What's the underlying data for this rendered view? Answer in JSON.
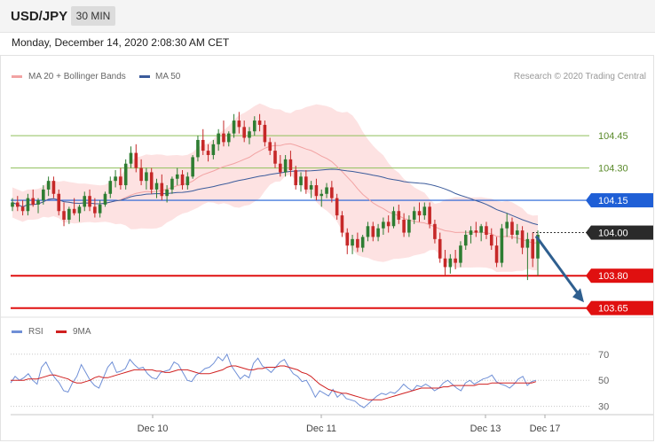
{
  "header": {
    "symbol": "USD/JPY",
    "timeframe": "30 MIN"
  },
  "datetime": "Monday, December 14, 2020 2:08:30 AM CET",
  "credit": "Research © 2020 Trading Central",
  "legend": {
    "ma20_label": "MA 20 + Bollinger Bands",
    "ma50_label": "MA 50",
    "rsi_label": "RSI",
    "rsi_ma_label": "9MA"
  },
  "colors": {
    "bull": "#2e7d32",
    "bear": "#c62828",
    "ma20": "#f2a3a3",
    "ma50": "#3b5b9b",
    "band": "#fde2e2",
    "support": "#e01010",
    "pivot_blue": "#1f5fd6",
    "resistance_green": "#8fbf5a",
    "arrow": "#2f5f8f",
    "rsi_line": "#6f8fd6",
    "rsi_ma": "#d02020"
  },
  "chart_data": [
    {
      "type": "candlestick",
      "x_ticks": [
        "Dec 10",
        "Dec 11",
        "Dec 13",
        "Dec 17"
      ],
      "ylim": [
        103.62,
        104.66
      ],
      "levels": [
        {
          "label": "104.45",
          "value": 104.45,
          "kind": "resistance"
        },
        {
          "label": "104.30",
          "value": 104.3,
          "kind": "resistance"
        },
        {
          "label": "104.15",
          "value": 104.15,
          "kind": "pivot"
        },
        {
          "label": "104.00",
          "value": 104.0,
          "kind": "last"
        },
        {
          "label": "103.80",
          "value": 103.8,
          "kind": "support"
        },
        {
          "label": "103.65",
          "value": 103.65,
          "kind": "support"
        }
      ],
      "projection": {
        "from_value": 104.0,
        "to_value": 103.66
      },
      "candles": [
        [
          104.12,
          104.16,
          104.1,
          104.14
        ],
        [
          104.14,
          104.17,
          104.1,
          104.12
        ],
        [
          104.12,
          104.15,
          104.08,
          104.1
        ],
        [
          104.1,
          104.18,
          104.08,
          104.16
        ],
        [
          104.16,
          104.2,
          104.12,
          104.13
        ],
        [
          104.13,
          104.16,
          104.09,
          104.15
        ],
        [
          104.15,
          104.22,
          104.13,
          104.2
        ],
        [
          104.2,
          104.26,
          104.17,
          104.24
        ],
        [
          104.24,
          104.26,
          104.16,
          104.18
        ],
        [
          104.18,
          104.2,
          104.08,
          104.1
        ],
        [
          104.1,
          104.14,
          104.03,
          104.06
        ],
        [
          104.06,
          104.12,
          104.04,
          104.11
        ],
        [
          104.11,
          104.16,
          104.08,
          104.09
        ],
        [
          104.09,
          104.13,
          104.05,
          104.12
        ],
        [
          104.12,
          104.19,
          104.1,
          104.17
        ],
        [
          104.17,
          104.2,
          104.1,
          104.12
        ],
        [
          104.12,
          104.16,
          104.07,
          104.09
        ],
        [
          104.09,
          104.15,
          104.07,
          104.13
        ],
        [
          104.13,
          104.19,
          104.12,
          104.18
        ],
        [
          104.18,
          104.26,
          104.16,
          104.24
        ],
        [
          104.24,
          104.29,
          104.21,
          104.26
        ],
        [
          104.26,
          104.3,
          104.2,
          104.22
        ],
        [
          104.22,
          104.34,
          104.2,
          104.32
        ],
        [
          104.32,
          104.4,
          104.3,
          104.37
        ],
        [
          104.37,
          104.41,
          104.28,
          104.3
        ],
        [
          104.3,
          104.34,
          104.22,
          104.24
        ],
        [
          104.24,
          104.3,
          104.2,
          104.28
        ],
        [
          104.28,
          104.3,
          104.18,
          104.2
        ],
        [
          104.2,
          104.25,
          104.16,
          104.23
        ],
        [
          104.23,
          104.27,
          104.15,
          104.17
        ],
        [
          104.17,
          104.22,
          104.14,
          104.2
        ],
        [
          104.2,
          104.26,
          104.18,
          104.25
        ],
        [
          104.25,
          104.3,
          104.22,
          104.27
        ],
        [
          104.27,
          104.29,
          104.2,
          104.22
        ],
        [
          104.22,
          104.28,
          104.2,
          104.26
        ],
        [
          104.26,
          104.36,
          104.25,
          104.35
        ],
        [
          104.35,
          104.45,
          104.33,
          104.43
        ],
        [
          104.43,
          104.48,
          104.36,
          104.38
        ],
        [
          104.38,
          104.41,
          104.33,
          104.36
        ],
        [
          104.36,
          104.43,
          104.34,
          104.41
        ],
        [
          104.41,
          104.48,
          104.38,
          104.46
        ],
        [
          104.46,
          104.52,
          104.4,
          104.42
        ],
        [
          104.42,
          104.47,
          104.4,
          104.46
        ],
        [
          104.46,
          104.55,
          104.44,
          104.52
        ],
        [
          104.52,
          104.56,
          104.46,
          104.49
        ],
        [
          104.49,
          104.52,
          104.42,
          104.44
        ],
        [
          104.44,
          104.49,
          104.41,
          104.47
        ],
        [
          104.47,
          104.54,
          104.45,
          104.52
        ],
        [
          104.52,
          104.55,
          104.47,
          104.5
        ],
        [
          104.5,
          104.52,
          104.4,
          104.42
        ],
        [
          104.42,
          104.44,
          104.36,
          104.38
        ],
        [
          104.38,
          104.42,
          104.3,
          104.32
        ],
        [
          104.32,
          104.36,
          104.26,
          104.28
        ],
        [
          104.28,
          104.36,
          104.26,
          104.34
        ],
        [
          104.34,
          104.38,
          104.26,
          104.29
        ],
        [
          104.29,
          104.31,
          104.2,
          104.22
        ],
        [
          104.22,
          104.28,
          104.19,
          104.26
        ],
        [
          104.26,
          104.29,
          104.18,
          104.2
        ],
        [
          104.2,
          104.24,
          104.16,
          104.22
        ],
        [
          104.22,
          104.25,
          104.15,
          104.17
        ],
        [
          104.17,
          104.2,
          104.12,
          104.18
        ],
        [
          104.18,
          104.23,
          104.16,
          104.21
        ],
        [
          104.21,
          104.24,
          104.14,
          104.16
        ],
        [
          104.16,
          104.18,
          104.06,
          104.08
        ],
        [
          104.08,
          104.1,
          103.98,
          104.0
        ],
        [
          104.0,
          104.02,
          103.9,
          103.94
        ],
        [
          103.94,
          103.99,
          103.9,
          103.97
        ],
        [
          103.97,
          104.0,
          103.91,
          103.93
        ],
        [
          103.93,
          103.99,
          103.91,
          103.98
        ],
        [
          103.98,
          104.05,
          103.96,
          104.03
        ],
        [
          104.03,
          104.05,
          103.96,
          103.98
        ],
        [
          103.98,
          104.04,
          103.96,
          104.02
        ],
        [
          104.02,
          104.07,
          103.99,
          104.05
        ],
        [
          104.05,
          104.08,
          104.0,
          104.03
        ],
        [
          104.03,
          104.12,
          104.02,
          104.1
        ],
        [
          104.1,
          104.13,
          104.04,
          104.06
        ],
        [
          104.06,
          104.09,
          103.98,
          104.0
        ],
        [
          104.0,
          104.08,
          103.98,
          104.06
        ],
        [
          104.06,
          104.12,
          104.04,
          104.1
        ],
        [
          104.1,
          104.14,
          104.05,
          104.08
        ],
        [
          104.08,
          104.14,
          104.06,
          104.12
        ],
        [
          104.12,
          104.14,
          104.02,
          104.04
        ],
        [
          104.04,
          104.06,
          103.95,
          103.97
        ],
        [
          103.97,
          104.0,
          103.86,
          103.88
        ],
        [
          103.88,
          103.92,
          103.8,
          103.84
        ],
        [
          103.84,
          103.9,
          103.81,
          103.88
        ],
        [
          103.88,
          103.92,
          103.83,
          103.86
        ],
        [
          103.86,
          103.96,
          103.84,
          103.94
        ],
        [
          103.94,
          104.01,
          103.92,
          103.99
        ],
        [
          103.99,
          104.03,
          103.95,
          104.01
        ],
        [
          104.01,
          104.05,
          103.98,
          104.0
        ],
        [
          104.0,
          104.04,
          103.96,
          104.03
        ],
        [
          104.03,
          104.05,
          103.97,
          103.99
        ],
        [
          103.99,
          104.02,
          103.92,
          103.94
        ],
        [
          103.94,
          103.98,
          103.84,
          103.86
        ],
        [
          103.86,
          104.04,
          103.84,
          104.02
        ],
        [
          104.02,
          104.09,
          103.98,
          104.05
        ],
        [
          104.05,
          104.07,
          103.97,
          103.99
        ],
        [
          103.99,
          104.04,
          103.95,
          104.01
        ],
        [
          104.01,
          104.03,
          103.9,
          103.93
        ],
        [
          103.93,
          104.0,
          103.78,
          103.97
        ],
        [
          103.97,
          104.0,
          103.84,
          103.88
        ],
        [
          103.88,
          104.01,
          103.8,
          103.99
        ]
      ]
    },
    {
      "type": "line",
      "title": "RSI",
      "y_ticks": [
        30,
        50,
        70
      ],
      "ylim": [
        25,
        78
      ],
      "series": [
        {
          "name": "RSI",
          "values": [
            48,
            53,
            50,
            52,
            55,
            50,
            47,
            60,
            64,
            57,
            52,
            48,
            42,
            41,
            48,
            53,
            62,
            56,
            50,
            46,
            44,
            52,
            60,
            64,
            56,
            57,
            59,
            66,
            62,
            59,
            60,
            55,
            52,
            51,
            56,
            57,
            58,
            64,
            62,
            56,
            50,
            49,
            54,
            56,
            59,
            60,
            63,
            68,
            65,
            70,
            61,
            56,
            51,
            54,
            52,
            63,
            67,
            61,
            59,
            56,
            60,
            64,
            66,
            60,
            55,
            53,
            49,
            50,
            44,
            37,
            42,
            40,
            38,
            43,
            37,
            40,
            36,
            35,
            34,
            31,
            29,
            32,
            35,
            38,
            40,
            39,
            41,
            40,
            43,
            47,
            44,
            42,
            46,
            45,
            47,
            45,
            42,
            44,
            48,
            50,
            47,
            44,
            42,
            48,
            50,
            47,
            49,
            51,
            52,
            54,
            49,
            47,
            46,
            44,
            47,
            51,
            53,
            46,
            49,
            50
          ]
        },
        {
          "name": "9MA",
          "values": [
            50,
            50,
            50,
            50,
            51,
            51,
            51,
            52,
            53,
            54,
            54,
            53,
            52,
            51,
            49,
            48,
            48,
            49,
            50,
            52,
            53,
            52,
            52,
            53,
            54,
            55,
            56,
            57,
            58,
            58,
            58,
            58,
            58,
            57,
            57,
            56,
            56,
            57,
            58,
            58,
            58,
            57,
            56,
            55,
            55,
            55,
            56,
            57,
            58,
            60,
            61,
            61,
            60,
            59,
            58,
            58,
            59,
            59,
            60,
            60,
            60,
            61,
            61,
            60,
            59,
            58,
            56,
            55,
            53,
            50,
            47,
            45,
            43,
            42,
            41,
            40,
            40,
            39,
            38,
            37,
            36,
            35,
            35,
            35,
            35,
            36,
            37,
            38,
            39,
            40,
            41,
            42,
            43,
            44,
            44,
            44,
            44,
            44,
            45,
            45,
            46,
            46,
            46,
            46,
            46,
            46,
            47,
            47,
            47,
            48,
            48,
            48,
            48,
            48,
            48,
            48,
            48,
            48,
            48,
            49
          ]
        }
      ]
    }
  ]
}
